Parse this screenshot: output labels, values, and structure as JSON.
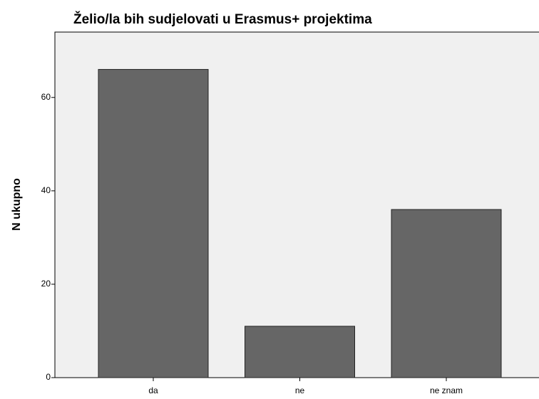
{
  "chart_data": {
    "type": "bar",
    "title": "Želio/la bih sudjelovati u Erasmus+ projektima",
    "y_label": "N ukupno",
    "categories": [
      "da",
      "ne",
      "ne znam"
    ],
    "values": [
      66,
      11,
      36
    ],
    "color": "#666666",
    "ylim": [
      0,
      74
    ],
    "yticks": [
      0,
      20,
      40,
      60
    ]
  }
}
